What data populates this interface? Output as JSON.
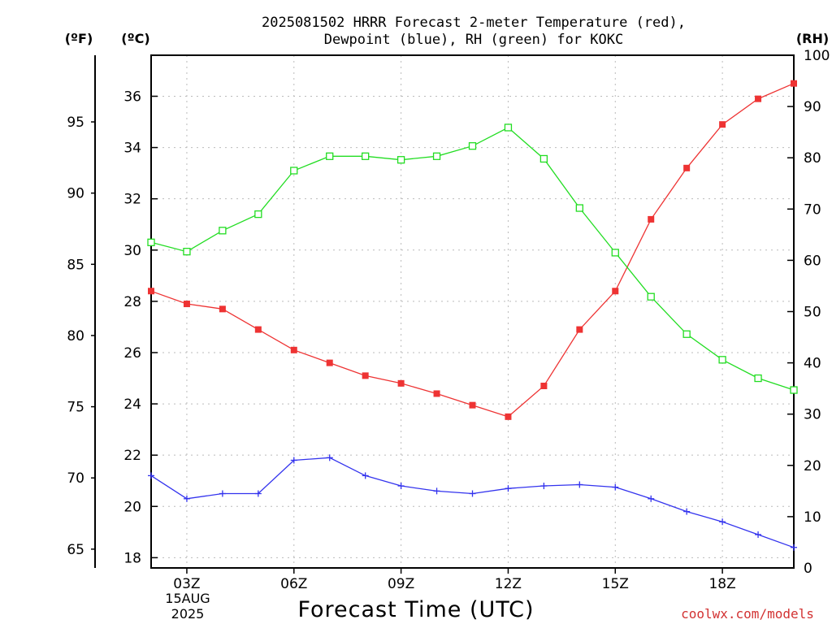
{
  "chart_data": {
    "type": "line",
    "title_line1": "2025081502 HRRR Forecast 2-meter Temperature (red),",
    "title_line2": "Dewpoint (blue), RH (green) for KOKC",
    "xlabel": "Forecast Time (UTC)",
    "unit_f": "(ºF)",
    "unit_c": "(ºC)",
    "unit_rh": "(RH)",
    "date_line1": "15AUG",
    "date_line2": "2025",
    "credit": "coolwx.com/models",
    "x": [
      "02Z",
      "03Z",
      "04Z",
      "05Z",
      "06Z",
      "07Z",
      "08Z",
      "09Z",
      "10Z",
      "11Z",
      "12Z",
      "13Z",
      "14Z",
      "15Z",
      "16Z",
      "17Z",
      "18Z",
      "19Z",
      "20Z"
    ],
    "x_tick_labels": [
      "03Z",
      "06Z",
      "09Z",
      "12Z",
      "15Z",
      "18Z"
    ],
    "x_tick_indices": [
      1,
      4,
      7,
      10,
      13,
      16
    ],
    "y_celsius_ticks": [
      18,
      20,
      22,
      24,
      26,
      28,
      30,
      32,
      34,
      36
    ],
    "y_celsius_lim": [
      17.6,
      37.6
    ],
    "y_fahrenheit_ticks": [
      65,
      70,
      75,
      80,
      85,
      90,
      95
    ],
    "y_rh_ticks": [
      0,
      10,
      20,
      30,
      40,
      50,
      60,
      70,
      80,
      90,
      100
    ],
    "y_rh_lim": [
      0,
      100
    ],
    "grid": true,
    "series": [
      {
        "name": "Temperature (red)",
        "axis": "celsius",
        "color": "#ee3333",
        "marker": "filled-square",
        "values": [
          28.4,
          27.9,
          27.7,
          26.9,
          26.1,
          25.6,
          25.1,
          24.8,
          24.4,
          23.95,
          23.5,
          24.7,
          26.9,
          28.4,
          31.2,
          33.2,
          34.9,
          35.9,
          36.5
        ]
      },
      {
        "name": "Dewpoint (blue)",
        "axis": "celsius",
        "color": "#3333ee",
        "marker": "plus",
        "values": [
          21.2,
          20.3,
          20.5,
          20.5,
          21.8,
          21.9,
          21.2,
          20.8,
          20.6,
          20.5,
          20.7,
          20.8,
          20.85,
          20.75,
          20.3,
          19.8,
          19.4,
          18.9,
          18.4
        ]
      },
      {
        "name": "RH (green)",
        "axis": "rh",
        "color": "#22dd22",
        "marker": "open-square",
        "values": [
          63.5,
          61.7,
          65.8,
          69.0,
          77.5,
          80.3,
          80.3,
          79.6,
          80.3,
          82.3,
          85.9,
          79.8,
          70.2,
          61.5,
          52.9,
          45.6,
          40.6,
          37.0,
          34.7
        ]
      }
    ]
  }
}
